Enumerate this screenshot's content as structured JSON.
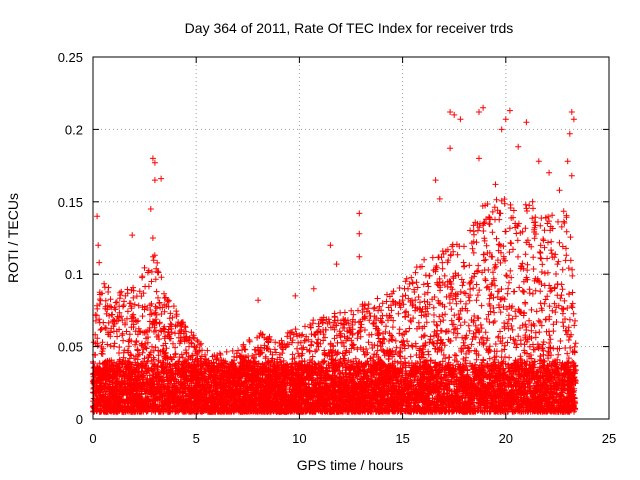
{
  "chart_data": {
    "type": "scatter",
    "title": "Day 364 of 2011, Rate Of TEC Index for receiver trds",
    "xlabel": "GPS time / hours",
    "ylabel": "ROTI / TECUs",
    "xlim": [
      0,
      25
    ],
    "ylim": [
      0,
      0.25
    ],
    "xticks": [
      0,
      5,
      10,
      15,
      20,
      25
    ],
    "yticks": [
      0,
      0.05,
      0.1,
      0.15,
      0.2,
      0.25
    ],
    "xtick_labels": [
      "0",
      "5",
      "10",
      "15",
      "20",
      "25"
    ],
    "ytick_labels": [
      "0",
      "0.05",
      "0.1",
      "0.15",
      "0.2",
      "0.25"
    ],
    "grid": true,
    "marker": "+",
    "color": "#ff0000",
    "series": [
      {
        "name": "ROTI",
        "notable_points": [
          {
            "x": 0.2,
            "y": 0.14
          },
          {
            "x": 0.25,
            "y": 0.12
          },
          {
            "x": 0.3,
            "y": 0.108
          },
          {
            "x": 2.9,
            "y": 0.18
          },
          {
            "x": 3.0,
            "y": 0.177
          },
          {
            "x": 3.0,
            "y": 0.165
          },
          {
            "x": 2.8,
            "y": 0.145
          },
          {
            "x": 2.9,
            "y": 0.125
          },
          {
            "x": 3.3,
            "y": 0.166
          },
          {
            "x": 1.9,
            "y": 0.127
          },
          {
            "x": 12.9,
            "y": 0.142
          },
          {
            "x": 12.9,
            "y": 0.128
          },
          {
            "x": 12.9,
            "y": 0.112
          },
          {
            "x": 11.5,
            "y": 0.12
          },
          {
            "x": 11.8,
            "y": 0.107
          },
          {
            "x": 8.0,
            "y": 0.082
          },
          {
            "x": 9.8,
            "y": 0.085
          },
          {
            "x": 10.7,
            "y": 0.09
          },
          {
            "x": 17.3,
            "y": 0.212
          },
          {
            "x": 17.5,
            "y": 0.21
          },
          {
            "x": 17.8,
            "y": 0.207
          },
          {
            "x": 18.7,
            "y": 0.212
          },
          {
            "x": 18.9,
            "y": 0.215
          },
          {
            "x": 20.2,
            "y": 0.213
          },
          {
            "x": 20.0,
            "y": 0.207
          },
          {
            "x": 19.8,
            "y": 0.2
          },
          {
            "x": 21.0,
            "y": 0.205
          },
          {
            "x": 23.2,
            "y": 0.212
          },
          {
            "x": 23.3,
            "y": 0.207
          },
          {
            "x": 23.1,
            "y": 0.197
          },
          {
            "x": 17.3,
            "y": 0.187
          },
          {
            "x": 18.7,
            "y": 0.18
          },
          {
            "x": 20.6,
            "y": 0.188
          },
          {
            "x": 21.6,
            "y": 0.178
          },
          {
            "x": 22.1,
            "y": 0.17
          },
          {
            "x": 23.0,
            "y": 0.178
          },
          {
            "x": 16.6,
            "y": 0.165
          },
          {
            "x": 16.8,
            "y": 0.152
          },
          {
            "x": 19.5,
            "y": 0.162
          },
          {
            "x": 21.3,
            "y": 0.15
          },
          {
            "x": 22.6,
            "y": 0.158
          },
          {
            "x": 23.2,
            "y": 0.168
          }
        ],
        "envelope": [
          {
            "x": 0,
            "y": 0.075
          },
          {
            "x": 0.5,
            "y": 0.1
          },
          {
            "x": 1,
            "y": 0.085
          },
          {
            "x": 2,
            "y": 0.095
          },
          {
            "x": 3,
            "y": 0.115
          },
          {
            "x": 3.5,
            "y": 0.09
          },
          {
            "x": 4,
            "y": 0.08
          },
          {
            "x": 5,
            "y": 0.055
          },
          {
            "x": 6,
            "y": 0.045
          },
          {
            "x": 7,
            "y": 0.048
          },
          {
            "x": 8,
            "y": 0.06
          },
          {
            "x": 9,
            "y": 0.055
          },
          {
            "x": 10,
            "y": 0.065
          },
          {
            "x": 11,
            "y": 0.07
          },
          {
            "x": 12,
            "y": 0.075
          },
          {
            "x": 13,
            "y": 0.08
          },
          {
            "x": 14,
            "y": 0.085
          },
          {
            "x": 15,
            "y": 0.095
          },
          {
            "x": 16,
            "y": 0.11
          },
          {
            "x": 17,
            "y": 0.12
          },
          {
            "x": 18,
            "y": 0.125
          },
          {
            "x": 19,
            "y": 0.15
          },
          {
            "x": 20,
            "y": 0.155
          },
          {
            "x": 21,
            "y": 0.15
          },
          {
            "x": 22,
            "y": 0.14
          },
          {
            "x": 23,
            "y": 0.15
          },
          {
            "x": 23.3,
            "y": 0.11
          }
        ],
        "x_range": [
          0,
          23.4
        ],
        "baseline": [
          0.005,
          0.035
        ]
      }
    ]
  }
}
